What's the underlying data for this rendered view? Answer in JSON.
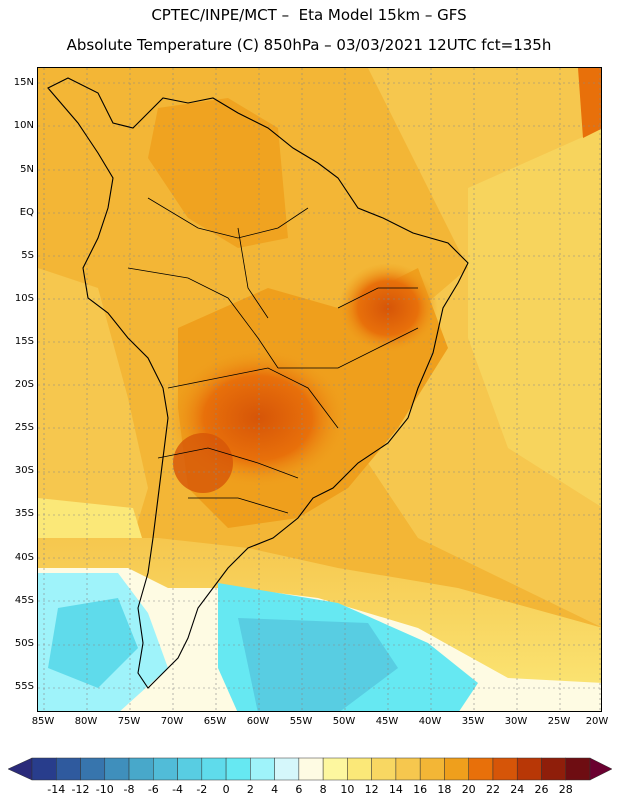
{
  "header": {
    "line1": "CPTEC/INPE/MCT –  Eta Model 15km – GFS",
    "line2": "Absolute Temperature (C) 850hPa – 03/03/2021 12UTC fct=135h"
  },
  "map": {
    "y_ticks": [
      "15N",
      "10N",
      "5N",
      "EQ",
      "5S",
      "10S",
      "15S",
      "20S",
      "25S",
      "30S",
      "35S",
      "40S",
      "45S",
      "50S",
      "55S"
    ],
    "x_ticks": [
      "85W",
      "80W",
      "75W",
      "70W",
      "65W",
      "60W",
      "55W",
      "50W",
      "45W",
      "40W",
      "35W",
      "30W",
      "25W",
      "20W"
    ]
  },
  "colorbar": {
    "labels": [
      "-14",
      "-12",
      "-10",
      "-8",
      "-6",
      "-4",
      "-2",
      "0",
      "2",
      "4",
      "6",
      "8",
      "10",
      "12",
      "14",
      "16",
      "18",
      "20",
      "22",
      "24",
      "26",
      "28"
    ],
    "colors": [
      "#283d8c",
      "#2f5a9e",
      "#3775ad",
      "#3f8fbc",
      "#48a8ca",
      "#51bcd8",
      "#58cde2",
      "#5fdbeb",
      "#66e8f2",
      "#9ff3fa",
      "#d5f7fb",
      "#fefbe3",
      "#fdf79f",
      "#fbe878",
      "#f8d762",
      "#f6c74e",
      "#f3b636",
      "#ef9f1c",
      "#e8700a",
      "#d65508",
      "#b83706",
      "#8f1e0a",
      "#6e0d12"
    ],
    "under_color": "#2a2a7a",
    "over_color": "#6a0030"
  }
}
